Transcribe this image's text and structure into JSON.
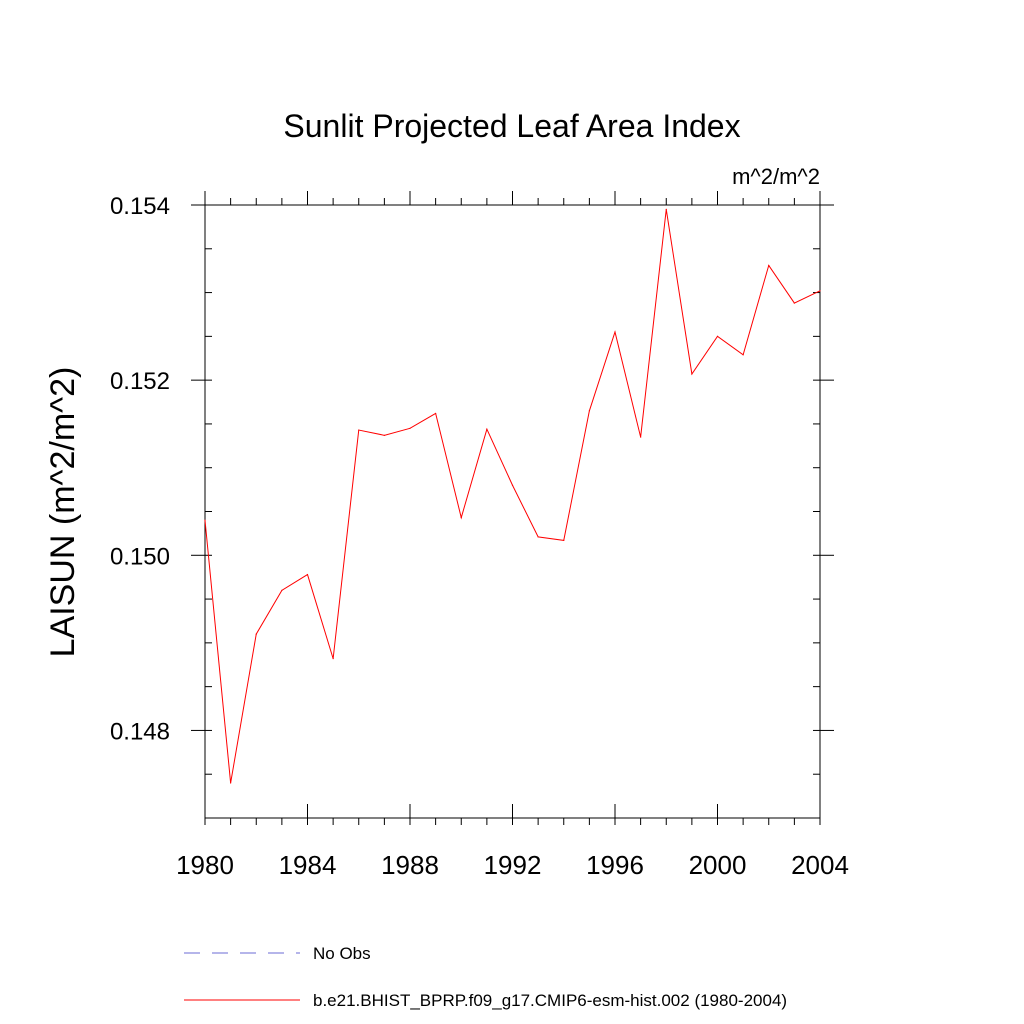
{
  "chart_data": {
    "type": "line",
    "title": "Sunlit Projected Leaf Area Index",
    "units_label": "m^2/m^2",
    "ylabel": "LAISUN  (m^2/m^2)",
    "xlabel": "",
    "xlim": [
      1980,
      2004
    ],
    "ylim": [
      0.147,
      0.154
    ],
    "x_major_ticks": [
      1980,
      1984,
      1988,
      1992,
      1996,
      2000,
      2004
    ],
    "x_tick_labels": [
      "1980",
      "1984",
      "1988",
      "1992",
      "1996",
      "2000",
      "2004"
    ],
    "x_minor_step": 1,
    "y_major_ticks": [
      0.148,
      0.15,
      0.152,
      0.154
    ],
    "y_tick_labels": [
      "0.148",
      "0.150",
      "0.152",
      "0.154"
    ],
    "y_minor_step": 0.0005,
    "grid": false,
    "legend_position": "bottom",
    "series": [
      {
        "name": "No Obs",
        "color": "#6b6bd6",
        "style": "dashed",
        "x": [],
        "values": []
      },
      {
        "name": "b.e21.BHIST_BPRP.f09_g17.CMIP6-esm-hist.002 (1980-2004)",
        "color": "#ff0000",
        "style": "solid",
        "x": [
          1980,
          1981,
          1982,
          1983,
          1984,
          1985,
          1986,
          1987,
          1988,
          1989,
          1990,
          1991,
          1992,
          1993,
          1994,
          1995,
          1996,
          1997,
          1998,
          1999,
          2000,
          2001,
          2002,
          2003,
          2004
        ],
        "values": [
          0.1504,
          0.1474,
          0.1491,
          0.1496,
          0.14978,
          0.14882,
          0.15143,
          0.15137,
          0.15145,
          0.15162,
          0.15043,
          0.15144,
          0.1508,
          0.15021,
          0.15017,
          0.15165,
          0.15255,
          0.15135,
          0.15395,
          0.15207,
          0.1525,
          0.15229,
          0.15331,
          0.15288,
          0.15302
        ]
      }
    ]
  }
}
